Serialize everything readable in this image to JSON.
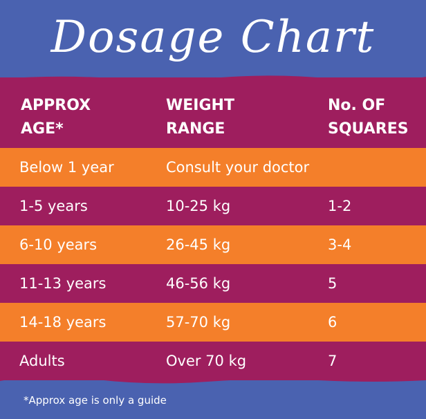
{
  "title": "Dosage Chart",
  "headers": {
    "col1_line1": "APPROX",
    "col1_line2": "AGE*",
    "col2_line1": "WEIGHT",
    "col2_line2": "RANGE",
    "col3_line1": "No. OF",
    "col3_line2": "SQUARES"
  },
  "rows": [
    {
      "age": "Below 1 year",
      "weight": "Consult your doctor",
      "squares": ""
    },
    {
      "age": "1-5 years",
      "weight": "10-25 kg",
      "squares": "1-2"
    },
    {
      "age": "6-10 years",
      "weight": "26-45 kg",
      "squares": "3-4"
    },
    {
      "age": "11-13 years",
      "weight": "46-56 kg",
      "squares": "5"
    },
    {
      "age": "14-18 years",
      "weight": "57-70 kg",
      "squares": "6"
    },
    {
      "age": "Adults",
      "weight": "Over 70 kg",
      "squares": "7"
    }
  ],
  "footnote": "*Approx age is only a guide",
  "colors": {
    "background_blue": "#4a62b0",
    "row_purple": "#9e1e5e",
    "row_orange": "#f47f2a",
    "text": "#ffffff"
  }
}
